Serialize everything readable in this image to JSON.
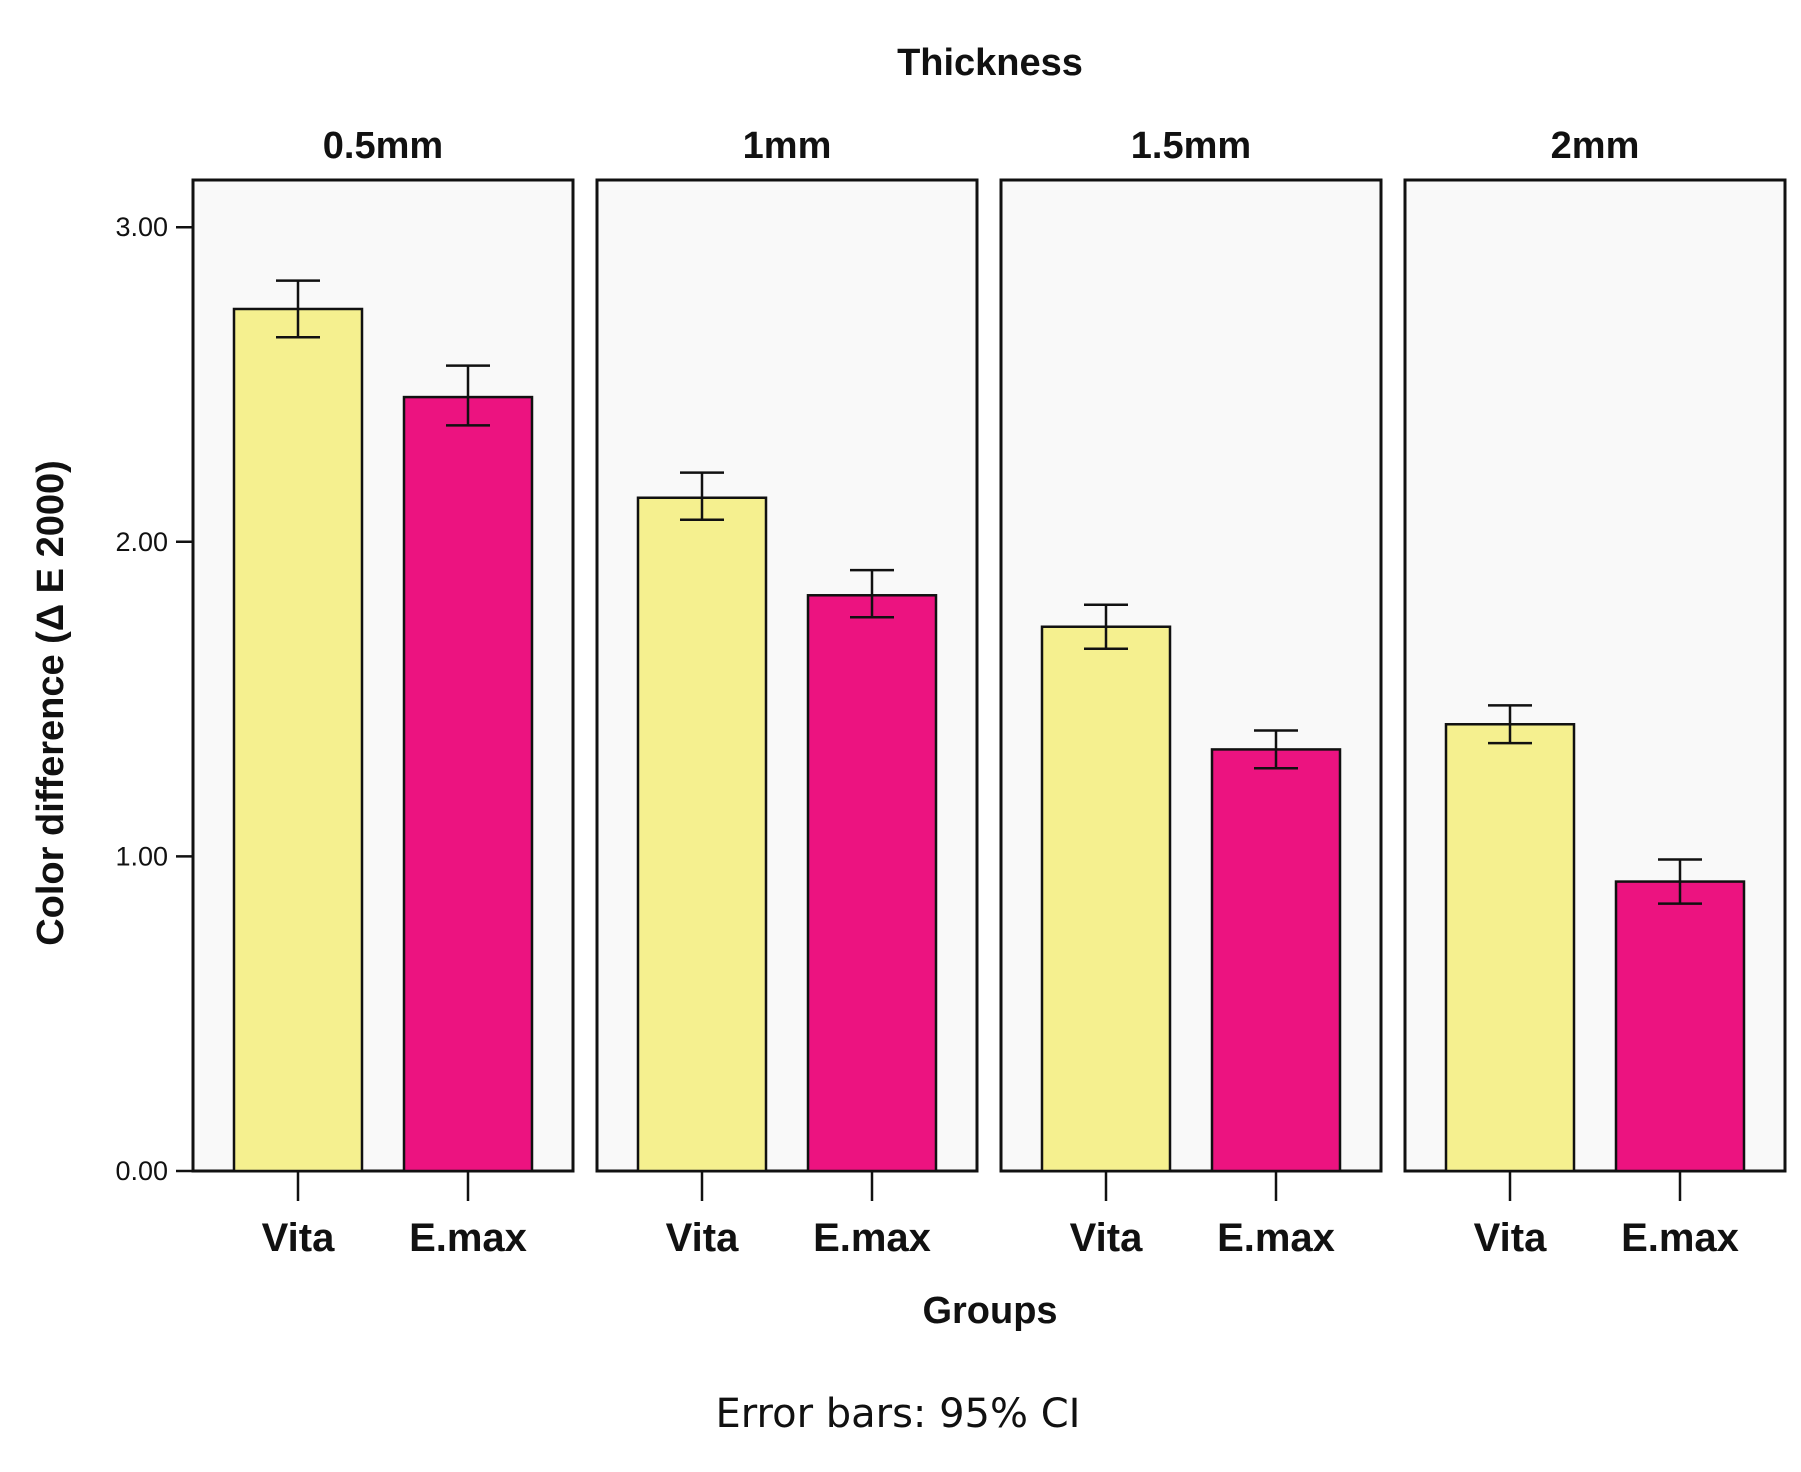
{
  "chart_data": {
    "type": "bar",
    "title": "Thickness",
    "xlabel": "Groups",
    "ylabel": "Color difference (Δ E 2000)",
    "footnote": "Error bars: 95% CI",
    "ylim": [
      0,
      3.15
    ],
    "yticks": [
      0,
      1,
      2,
      3
    ],
    "ytick_labels": [
      "0.00",
      "1.00",
      "2.00",
      "3.00"
    ],
    "categories": [
      "Vita",
      "E.max"
    ],
    "colors": {
      "Vita": "#f5f08f",
      "E.max": "#ec1380"
    },
    "panel_background": "#f9f9f9",
    "facets": [
      {
        "label": "0.5mm",
        "values": [
          2.74,
          2.46
        ],
        "ci_low": [
          2.65,
          2.37
        ],
        "ci_high": [
          2.83,
          2.56
        ]
      },
      {
        "label": "1mm",
        "values": [
          2.14,
          1.83
        ],
        "ci_low": [
          2.07,
          1.76
        ],
        "ci_high": [
          2.22,
          1.91
        ]
      },
      {
        "label": "1.5mm",
        "values": [
          1.73,
          1.34
        ],
        "ci_low": [
          1.66,
          1.28
        ],
        "ci_high": [
          1.8,
          1.4
        ]
      },
      {
        "label": "2mm",
        "values": [
          1.42,
          0.92
        ],
        "ci_low": [
          1.36,
          0.85
        ],
        "ci_high": [
          1.48,
          0.99
        ]
      }
    ]
  }
}
